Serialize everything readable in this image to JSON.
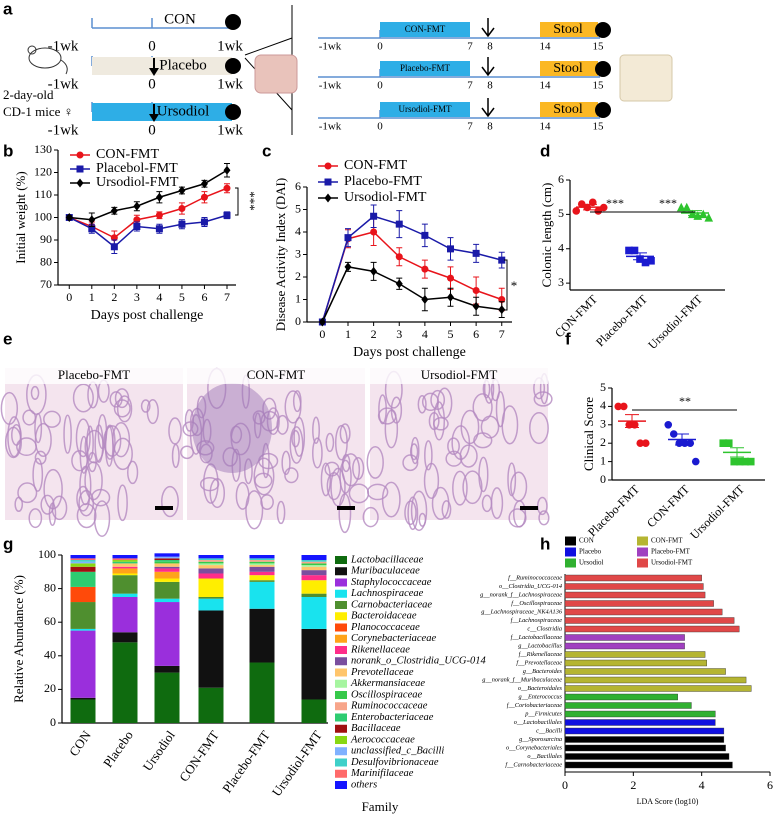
{
  "panel_labels": [
    "a",
    "b",
    "c",
    "d",
    "e",
    "f",
    "g",
    "h"
  ],
  "diagram": {
    "groups": [
      {
        "label": "CON"
      },
      {
        "label": "Placebo"
      },
      {
        "label": "Ursodiol"
      }
    ],
    "group_ticks": [
      "-1wk",
      "0",
      "1wk"
    ],
    "mouse": [
      "2-day-old",
      "CD-1 mice ♀"
    ],
    "fmt_rows": [
      {
        "label": "CON-FMT"
      },
      {
        "label": "Placebo-FMT"
      },
      {
        "label": "Ursodiol-FMT"
      }
    ],
    "fmt_end": "Stool",
    "fmt_ticks": [
      "-1wk",
      "0",
      "7",
      "8",
      "14",
      "15"
    ]
  },
  "micrographs": [
    "Placebo-FMT",
    "CON-FMT",
    "Ursodiol-FMT"
  ],
  "chart_data": [
    {
      "type": "line",
      "ylabel": "Initial weight (%)",
      "xlabel": "Days post challenge",
      "x": [
        0,
        1,
        2,
        3,
        4,
        5,
        6,
        7
      ],
      "xlim": [
        -0.5,
        7.4
      ],
      "xticks": [
        0,
        1,
        2,
        3,
        4,
        5,
        6,
        7
      ],
      "ylim": [
        70,
        130
      ],
      "yticks": [
        70,
        80,
        90,
        100,
        110,
        120,
        130
      ],
      "annotations": [
        "***"
      ],
      "series": [
        {
          "name": "CON-FMT",
          "color": "#e8141b",
          "marker": "circle",
          "values": [
            100,
            96,
            91,
            99,
            101,
            104,
            109,
            113
          ],
          "errors": [
            0.8,
            2,
            3,
            2,
            1.5,
            2.5,
            2.5,
            2
          ]
        },
        {
          "name": "Placebol-FMT",
          "color": "#1a1aa8",
          "marker": "square",
          "values": [
            100,
            95,
            87,
            96,
            95,
            97,
            98,
            101
          ],
          "errors": [
            0.8,
            2,
            3,
            2,
            2,
            2,
            2,
            1.5
          ]
        },
        {
          "name": "Ursodiol-FMT",
          "color": "#000000",
          "marker": "diamond",
          "values": [
            100,
            99,
            103,
            105,
            109,
            112,
            115,
            121
          ],
          "errors": [
            0.8,
            3,
            1.5,
            2,
            2.5,
            1.5,
            1.5,
            3
          ]
        }
      ]
    },
    {
      "type": "line",
      "ylabel": "Disease Activity Index (DAI)",
      "xlabel": "Days post challenge",
      "x": [
        0,
        1,
        2,
        3,
        4,
        5,
        6,
        7
      ],
      "xlim": [
        -0.6,
        7.4
      ],
      "xticks": [
        0,
        1,
        2,
        3,
        4,
        5,
        6,
        7
      ],
      "ylim": [
        0,
        6
      ],
      "yticks": [
        0,
        1,
        2,
        3,
        4,
        5,
        6
      ],
      "annotations": [
        "*"
      ],
      "series": [
        {
          "name": "CON-FMT",
          "color": "#e8141b",
          "marker": "circle",
          "values": [
            0,
            3.7,
            4.0,
            2.9,
            2.35,
            1.95,
            1.4,
            1.0
          ],
          "errors": [
            0,
            0.4,
            0.6,
            0.4,
            0.4,
            0.5,
            0.6,
            0.5
          ]
        },
        {
          "name": "Placebo-FMT",
          "color": "#1a1aa8",
          "marker": "square",
          "values": [
            0,
            3.75,
            4.7,
            4.35,
            3.85,
            3.25,
            3.05,
            2.75
          ],
          "errors": [
            0,
            0.4,
            0.5,
            0.6,
            0.5,
            0.5,
            0.4,
            0.35
          ]
        },
        {
          "name": "Ursodiol-FMT",
          "color": "#000000",
          "marker": "diamond",
          "values": [
            0,
            2.45,
            2.25,
            1.7,
            1.0,
            1.1,
            0.7,
            0.55
          ],
          "errors": [
            0,
            0.2,
            0.4,
            0.25,
            0.5,
            0.4,
            0.4,
            0.35
          ]
        }
      ]
    },
    {
      "type": "scatter",
      "ylabel": "Colonic length (cm)",
      "categories": [
        "CON-FMT",
        "Placebo-FMT",
        "Ursodiol-FMT"
      ],
      "colors": [
        "#e8141b",
        "#1a1ad0",
        "#2ec42e"
      ],
      "markers": [
        "circle",
        "square",
        "triangle"
      ],
      "points": [
        [
          5.1,
          5.3,
          5.2,
          5.35,
          5.1,
          5.2
        ],
        [
          3.95,
          3.95,
          3.7,
          3.6,
          3.65
        ],
        [
          5.2,
          5.2,
          5.0,
          4.95,
          5.0,
          4.9
        ]
      ],
      "means": [
        5.21,
        3.78,
        5.04
      ],
      "errors": [
        0.08,
        0.1,
        0.07
      ],
      "ylim": [
        2.8,
        6
      ],
      "yticks": [
        3,
        4,
        5,
        6
      ],
      "annotations": [
        "***",
        "***"
      ]
    },
    {
      "type": "scatter",
      "ylabel": "Clinical Score",
      "categories": [
        "Placebo-FMT",
        "CON-FMT",
        "Ursodiol-FMT"
      ],
      "colors": [
        "#e8141b",
        "#1a1ad0",
        "#2ec42e"
      ],
      "markers": [
        "circle",
        "circle",
        "square"
      ],
      "points": [
        [
          4,
          4,
          3,
          3,
          2,
          2
        ],
        [
          3,
          2.5,
          2,
          2,
          2,
          1
        ],
        [
          2,
          2,
          1,
          1,
          1,
          1
        ]
      ],
      "means": [
        3.2,
        2.2,
        1.5
      ],
      "errors": [
        0.35,
        0.3,
        0.25
      ],
      "ylim": [
        0,
        5
      ],
      "yticks": [
        0,
        1,
        2,
        3,
        4,
        5
      ],
      "annotations": [
        "**"
      ]
    },
    {
      "type": "bar",
      "stacked": true,
      "ylabel": "Relative Abundance (%)",
      "xlabel": "Family",
      "categories": [
        "CON",
        "Placebo",
        "Ursodiol",
        "CON-FMT",
        "Placebo-FMT",
        "Ursodiol-FMT"
      ],
      "ylim": [
        0,
        100
      ],
      "yticks": [
        0,
        20,
        40,
        60,
        80,
        100
      ],
      "series": [
        {
          "name": "Lactobacillaceae",
          "color": "#0f6b0f",
          "values": [
            14,
            48,
            30,
            21,
            36,
            14
          ]
        },
        {
          "name": "Muribaculaceae",
          "color": "#111111",
          "values": [
            1,
            6,
            4,
            46,
            32,
            42
          ]
        },
        {
          "name": "Staphylococcaceae",
          "color": "#9a2fdc",
          "values": [
            40,
            21,
            38,
            0,
            0,
            0
          ]
        },
        {
          "name": "Lachnospiraceae",
          "color": "#19e3ee",
          "values": [
            1,
            2,
            2,
            7,
            16,
            19
          ]
        },
        {
          "name": "Carnobacteriaceae",
          "color": "#4f8f2f",
          "values": [
            16,
            11,
            10,
            1,
            1,
            2
          ]
        },
        {
          "name": "Bacteroidaceae",
          "color": "#ffee00",
          "values": [
            0,
            1,
            2,
            11,
            3,
            8
          ]
        },
        {
          "name": "Planococcaceae",
          "color": "#ff4a0a",
          "values": [
            9,
            0,
            0,
            0,
            0,
            0
          ]
        },
        {
          "name": "Corynebacteriaceae",
          "color": "#ffa31a",
          "values": [
            0,
            3,
            4,
            0,
            0,
            0
          ]
        },
        {
          "name": "Rikenellaceae",
          "color": "#ff2d8a",
          "values": [
            0,
            1,
            2,
            3,
            2,
            3
          ]
        },
        {
          "name": "norank_o_Clostridia_UCG-014",
          "color": "#7a4e9e",
          "values": [
            0,
            0,
            1,
            3,
            3,
            3
          ]
        },
        {
          "name": "Prevotellaceae",
          "color": "#ffc56b",
          "values": [
            0,
            2,
            2,
            2,
            1,
            2
          ]
        },
        {
          "name": "Akkermansiaceae",
          "color": "#a6f5a0",
          "values": [
            0,
            0,
            0,
            1,
            1,
            1
          ]
        },
        {
          "name": "Oscillospiraceae",
          "color": "#36c94a",
          "values": [
            0,
            0,
            1,
            1,
            1,
            1
          ]
        },
        {
          "name": "Ruminococcaceae",
          "color": "#f7a58a",
          "values": [
            0,
            0,
            0,
            1,
            1,
            1
          ]
        },
        {
          "name": "Enterobacteriaceae",
          "color": "#2ecc71",
          "values": [
            9,
            1,
            1,
            0,
            0,
            0
          ]
        },
        {
          "name": "Bacillaceae",
          "color": "#a01010",
          "values": [
            3,
            0,
            1,
            0,
            0,
            0
          ]
        },
        {
          "name": "Aerococcaceae",
          "color": "#88d813",
          "values": [
            2,
            1,
            0,
            0,
            0,
            0
          ]
        },
        {
          "name": "unclassified_c_Bacilli",
          "color": "#7fb1ff",
          "values": [
            1,
            0,
            1,
            0,
            0,
            0
          ]
        },
        {
          "name": "Desulfovibrionaceae",
          "color": "#3fd0c9",
          "values": [
            1,
            0,
            0,
            1,
            1,
            1
          ]
        },
        {
          "name": "Marinifilaceae",
          "color": "#ff6a6a",
          "values": [
            1,
            1,
            0,
            0,
            0,
            0
          ]
        },
        {
          "name": "others",
          "color": "#1515ff",
          "values": [
            2,
            2,
            2,
            2,
            2,
            3
          ]
        }
      ]
    },
    {
      "type": "bar",
      "orientation": "horizontal",
      "xlabel": "LDA Score (log10)",
      "categories": [
        "f__Ruminococcaceae",
        "o__Clostridia_UCG-014",
        "g__norank_f__Lachnospiraceae",
        "f__Oscillospiraceae",
        "g__Lachnospiraceae_NK4A136",
        "f__Lachnospiraceae",
        "c__Clostridia",
        "f__Lactobacillaceae",
        "g__Lactobacillus",
        "f__Rikenellaceae",
        "f__Prevotellaceae",
        "g__Bacteroides",
        "g__norank_f__Muribaculaceae",
        "o__Bacteroidales",
        "g__Enterococcus",
        "f__Coriobacteriaceae",
        "p__Firmicutes",
        "o__Lactobacillales",
        "c__Bacilli",
        "g__Sporosarcina",
        "o__Corynebacteriales",
        "o__Bacillales",
        "f__Carnobacteriaceae"
      ],
      "xlim": [
        0,
        6
      ],
      "xticks": [
        0,
        2,
        4,
        6
      ],
      "series": [
        {
          "name": "CON",
          "color": "#000000",
          "values": [
            null,
            null,
            null,
            null,
            null,
            null,
            null,
            null,
            null,
            null,
            null,
            null,
            null,
            null,
            null,
            null,
            null,
            null,
            null,
            4.65,
            4.7,
            4.8,
            4.9
          ]
        },
        {
          "name": "CON-FMT",
          "color": "#b5b532",
          "values": [
            null,
            null,
            null,
            null,
            null,
            null,
            null,
            null,
            null,
            4.1,
            4.15,
            4.7,
            5.3,
            5.45,
            null,
            null,
            null,
            null,
            null,
            null,
            null,
            null,
            null
          ]
        },
        {
          "name": "Placebo",
          "color": "#1010e0",
          "values": [
            null,
            null,
            null,
            null,
            null,
            null,
            null,
            null,
            null,
            null,
            null,
            null,
            null,
            null,
            null,
            null,
            null,
            4.4,
            4.65,
            null,
            null,
            null,
            null
          ]
        },
        {
          "name": "Placebo-FMT",
          "color": "#a040c0",
          "values": [
            null,
            null,
            null,
            null,
            null,
            null,
            null,
            3.5,
            3.5,
            null,
            null,
            null,
            null,
            null,
            null,
            null,
            null,
            null,
            null,
            null,
            null,
            null,
            null
          ]
        },
        {
          "name": "Ursodiol",
          "color": "#30b030",
          "values": [
            null,
            null,
            null,
            null,
            null,
            null,
            null,
            null,
            null,
            null,
            null,
            null,
            null,
            null,
            3.3,
            3.7,
            4.4,
            null,
            null,
            null,
            null,
            null,
            null
          ]
        },
        {
          "name": "Ursodiol-FMT",
          "color": "#e04848",
          "values": [
            4.0,
            4.05,
            4.1,
            4.35,
            4.6,
            4.95,
            5.1,
            null,
            null,
            null,
            null,
            null,
            null,
            null,
            null,
            null,
            null,
            null,
            null,
            null,
            null,
            null,
            null
          ]
        }
      ]
    }
  ]
}
